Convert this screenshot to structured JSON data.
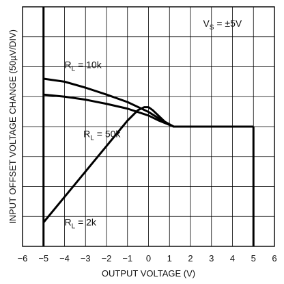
{
  "chart_data": {
    "type": "line",
    "xlabel": "OUTPUT VOLTAGE (V)",
    "ylabel": "INPUT OFFSET VOLTAGE CHANGE (50µV/DIV)",
    "xlim": [
      -6,
      6
    ],
    "ylim": [
      0,
      8
    ],
    "x_ticks": [
      -6,
      -5,
      -4,
      -3,
      -2,
      -1,
      0,
      1,
      2,
      3,
      4,
      5,
      6
    ],
    "x_tick_labels": [
      "−6",
      "−5",
      "−4",
      "−3",
      "−2",
      "−1",
      "0",
      "1",
      "2",
      "3",
      "4",
      "5",
      "6"
    ],
    "grid": true,
    "condition": {
      "main": "V",
      "sub": "S",
      "rest": " = ±5V"
    },
    "boundary": {
      "x": [
        -5,
        -5,
        5,
        5
      ],
      "y": [
        8,
        0,
        0,
        4
      ]
    },
    "series": [
      {
        "label_main": "R",
        "label_sub": "L",
        "label_rest": " = 10k",
        "x": [
          -5,
          -4,
          -3,
          -2,
          -1,
          0,
          0.5,
          1.2,
          5
        ],
        "y": [
          5.6,
          5.5,
          5.3,
          5.07,
          4.82,
          4.49,
          4.27,
          4.0,
          4.0
        ]
      },
      {
        "label_main": "R",
        "label_sub": "L",
        "label_rest": " = 50k",
        "x": [
          -5,
          -4,
          -3,
          -2,
          -1,
          0,
          0.5,
          1.2,
          5
        ],
        "y": [
          5.07,
          5.0,
          4.9,
          4.76,
          4.6,
          4.37,
          4.2,
          4.0,
          4.0
        ]
      },
      {
        "label_main": "R",
        "label_sub": "L",
        "label_rest": " = 2k",
        "x": [
          -5,
          -4,
          -3,
          -2,
          -1,
          -0.5,
          -0.2,
          0,
          0.2,
          0.5,
          0.8,
          1.2,
          5
        ],
        "y": [
          0.8,
          1.65,
          2.5,
          3.35,
          4.2,
          4.55,
          4.65,
          4.65,
          4.55,
          4.35,
          4.15,
          4.0,
          4.0
        ]
      }
    ],
    "label_positions_data": [
      {
        "series": 0,
        "x": -4.0,
        "y": 5.95
      },
      {
        "series": 1,
        "x": -3.1,
        "y": 3.65
      },
      {
        "series": 2,
        "x": -4.0,
        "y": 0.7
      }
    ]
  }
}
